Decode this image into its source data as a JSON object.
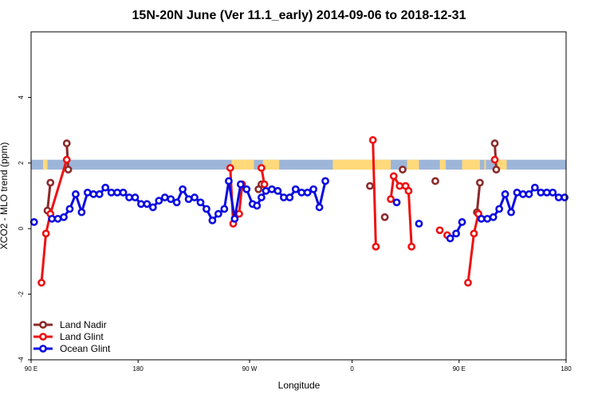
{
  "chart_data": {
    "type": "line",
    "title": "15N-20N June (Ver 11.1_early)   2014-09-06 to 2018-12-31",
    "xlabel": "Longitude",
    "ylabel": "XCO2 - MLO trend (ppm)",
    "xlim": [
      0,
      360
    ],
    "ylim": [
      -4,
      6
    ],
    "x_ticks": [
      {
        "x": 0,
        "label": "90 E"
      },
      {
        "x": 72,
        "label": "180"
      },
      {
        "x": 147,
        "label": "90 W"
      },
      {
        "x": 216,
        "label": "0"
      },
      {
        "x": 288,
        "label": "90 E"
      },
      {
        "x": 360,
        "label": "180"
      }
    ],
    "y_ticks": [
      -4,
      -2,
      0,
      2,
      4
    ],
    "grid": false,
    "legend_position": "bottom-left",
    "band": {
      "y_range": [
        1.8,
        2.1
      ],
      "colors": {
        "ocean": "#9db5d9",
        "land": "#ffd97a"
      },
      "land_segments": [
        [
          8,
          11
        ],
        [
          135,
          150
        ],
        [
          156,
          167
        ],
        [
          203,
          242
        ],
        [
          253,
          261
        ],
        [
          275,
          279
        ],
        [
          290,
          302
        ],
        [
          305,
          306
        ],
        [
          313,
          320
        ]
      ]
    },
    "series": [
      {
        "name": "Land Nadir",
        "color": "#8b2a2a",
        "segments": [
          [
            [
              11,
              0.55
            ],
            [
              13,
              1.4
            ]
          ],
          [
            [
              24,
              2.6
            ],
            [
              25,
              1.8
            ]
          ],
          [
            [
              153,
              1.2
            ],
            [
              155,
              1.35
            ]
          ],
          [
            [
              228,
              1.3
            ]
          ],
          [
            [
              238,
              0.35
            ]
          ],
          [
            [
              250,
              1.8
            ]
          ],
          [
            [
              272,
              1.45
            ]
          ],
          [
            [
              300,
              0.5
            ],
            [
              302,
              1.4
            ]
          ],
          [
            [
              312,
              2.6
            ],
            [
              313,
              1.8
            ]
          ]
        ]
      },
      {
        "name": "Land Glint",
        "color": "#ee1111",
        "segments": [
          [
            [
              7,
              -1.65
            ],
            [
              10,
              -0.15
            ],
            [
              13,
              0.45
            ],
            [
              24,
              2.1
            ]
          ],
          [
            [
              134,
              1.85
            ],
            [
              136,
              0.15
            ],
            [
              140,
              0.45
            ],
            [
              142,
              1.35
            ]
          ],
          [
            [
              155,
              1.85
            ],
            [
              157,
              1.35
            ]
          ],
          [
            [
              230,
              2.7
            ],
            [
              232,
              -0.55
            ]
          ],
          [
            [
              242,
              0.9
            ],
            [
              244,
              1.6
            ],
            [
              248,
              1.3
            ],
            [
              252,
              1.3
            ],
            [
              254,
              1.15
            ],
            [
              256,
              -0.55
            ]
          ],
          [
            [
              275,
              -0.05
            ]
          ],
          [
            [
              280,
              -0.2
            ]
          ],
          [
            [
              294,
              -1.65
            ],
            [
              298,
              -0.15
            ],
            [
              301,
              0.45
            ]
          ],
          [
            [
              312,
              2.1
            ]
          ]
        ]
      },
      {
        "name": "Ocean Glint",
        "color": "#0b0be0",
        "segments": [
          [
            [
              2,
              0.2
            ]
          ],
          [
            [
              14,
              0.3
            ],
            [
              18,
              0.3
            ],
            [
              22,
              0.35
            ],
            [
              26,
              0.6
            ],
            [
              30,
              1.05
            ],
            [
              34,
              0.5
            ],
            [
              38,
              1.1
            ],
            [
              42,
              1.05
            ],
            [
              46,
              1.05
            ],
            [
              50,
              1.25
            ],
            [
              54,
              1.1
            ],
            [
              58,
              1.1
            ],
            [
              62,
              1.1
            ],
            [
              66,
              0.95
            ],
            [
              70,
              0.95
            ],
            [
              74,
              0.75
            ],
            [
              78,
              0.75
            ],
            [
              82,
              0.65
            ],
            [
              86,
              0.85
            ],
            [
              90,
              0.95
            ],
            [
              94,
              0.9
            ],
            [
              98,
              0.8
            ],
            [
              102,
              1.2
            ],
            [
              106,
              0.9
            ],
            [
              110,
              0.95
            ],
            [
              114,
              0.8
            ],
            [
              118,
              0.6
            ],
            [
              122,
              0.25
            ],
            [
              126,
              0.45
            ],
            [
              130,
              0.6
            ],
            [
              133,
              1.45
            ],
            [
              137,
              0.3
            ],
            [
              141,
              1.35
            ],
            [
              145,
              1.2
            ],
            [
              149,
              0.75
            ],
            [
              152,
              0.7
            ],
            [
              155,
              0.95
            ],
            [
              158,
              1.15
            ],
            [
              162,
              1.2
            ],
            [
              166,
              1.15
            ],
            [
              170,
              0.95
            ],
            [
              174,
              0.95
            ],
            [
              178,
              1.2
            ],
            [
              182,
              1.1
            ],
            [
              186,
              1.1
            ],
            [
              190,
              1.2
            ],
            [
              194,
              0.65
            ],
            [
              198,
              1.45
            ]
          ],
          [
            [
              246,
              0.8
            ]
          ],
          [
            [
              261,
              0.15
            ]
          ],
          [
            [
              282,
              -0.3
            ],
            [
              286,
              -0.15
            ],
            [
              290,
              0.2
            ]
          ],
          [
            [
              303,
              0.3
            ],
            [
              307,
              0.3
            ],
            [
              311,
              0.35
            ],
            [
              315,
              0.6
            ],
            [
              319,
              1.05
            ],
            [
              323,
              0.5
            ],
            [
              327,
              1.1
            ],
            [
              331,
              1.05
            ],
            [
              335,
              1.05
            ],
            [
              339,
              1.25
            ],
            [
              343,
              1.1
            ],
            [
              347,
              1.1
            ],
            [
              351,
              1.1
            ],
            [
              355,
              0.95
            ],
            [
              359,
              0.95
            ]
          ]
        ]
      }
    ]
  }
}
